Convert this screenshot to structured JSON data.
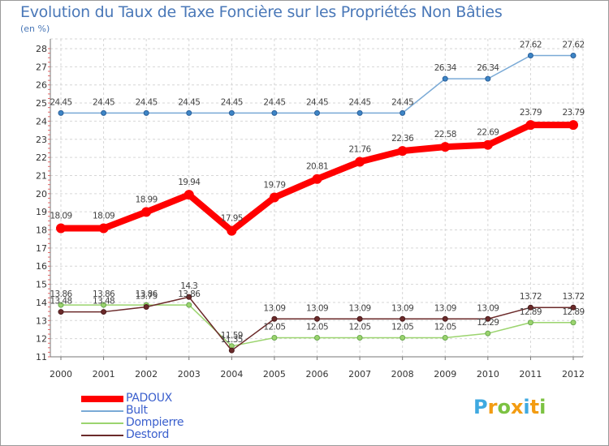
{
  "header": {
    "title": "Evolution du Taux de Taxe Foncière sur les Propriétés Non Bâties",
    "unit": "(en %)"
  },
  "chart_data": {
    "type": "line",
    "title": "Evolution du Taux de Taxe Foncière sur les Propriétés Non Bâties",
    "ylabel": "(en %)",
    "xlabel": "",
    "categories": [
      "2000",
      "2001",
      "2002",
      "2003",
      "2004",
      "2005",
      "2006",
      "2007",
      "2008",
      "2009",
      "2010",
      "2011",
      "2012"
    ],
    "ylim": [
      11,
      28
    ],
    "yticks": [
      "11",
      "12",
      "13",
      "14",
      "15",
      "16",
      "17",
      "18",
      "19",
      "20",
      "21",
      "22",
      "23",
      "24",
      "25",
      "26",
      "27",
      "28"
    ],
    "grid": true,
    "series": [
      {
        "name": "PADOUX",
        "color": "#ff0000",
        "values": [
          18.09,
          18.09,
          18.99,
          19.94,
          17.95,
          19.79,
          20.81,
          21.76,
          22.36,
          22.58,
          22.69,
          23.79,
          23.79
        ],
        "labels": [
          "18.09",
          "18.09",
          "18.99",
          "19.94",
          "17.95",
          "19.79",
          "20.81",
          "21.76",
          "22.36",
          "22.58",
          "22.69",
          "23.79",
          "23.79"
        ]
      },
      {
        "name": "Bult",
        "color": "#7aaad6",
        "values": [
          24.45,
          24.45,
          24.45,
          24.45,
          24.45,
          24.45,
          24.45,
          24.45,
          24.45,
          26.34,
          26.34,
          27.62,
          27.62
        ],
        "labels": [
          "24.45",
          "24.45",
          "24.45",
          "24.45",
          "24.45",
          "24.45",
          "24.45",
          "24.45",
          "24.45",
          "26.34",
          "26.34",
          "27.62",
          "27.62"
        ]
      },
      {
        "name": "Dompierre",
        "color": "#9bd46e",
        "values": [
          13.86,
          13.86,
          13.86,
          13.86,
          11.59,
          12.05,
          12.05,
          12.05,
          12.05,
          12.05,
          12.29,
          12.89,
          12.89
        ],
        "labels": [
          "13.86",
          "13.86",
          "13.86",
          "13.86",
          "11.59",
          "12.05",
          "12.05",
          "12.05",
          "12.05",
          "12.05",
          "12.29",
          "12.89",
          "12.89"
        ]
      },
      {
        "name": "Destord",
        "color": "#6b2a2a",
        "values": [
          13.48,
          13.48,
          13.75,
          14.3,
          11.35,
          13.09,
          13.09,
          13.09,
          13.09,
          13.09,
          13.09,
          13.72,
          13.72
        ],
        "labels": [
          "13.48",
          "13.48",
          "13.75",
          "14.3",
          "11.35",
          "13.09",
          "13.09",
          "13.09",
          "13.09",
          "13.09",
          "13.09",
          "13.72",
          "13.72"
        ]
      }
    ]
  },
  "legend": {
    "items": [
      {
        "label": "PADOUX",
        "color": "#ff0000"
      },
      {
        "label": "Bult",
        "color": "#7aaad6"
      },
      {
        "label": "Dompierre",
        "color": "#9bd46e"
      },
      {
        "label": "Destord",
        "color": "#6b2a2a"
      }
    ]
  },
  "brand": {
    "letters": [
      "P",
      "r",
      "o",
      "x",
      "i",
      "t",
      "i"
    ],
    "colors": [
      "#3fa9e0",
      "#f39c12",
      "#7cc242",
      "#f39c12",
      "#3fa9e0",
      "#f39c12",
      "#7cc242"
    ]
  }
}
